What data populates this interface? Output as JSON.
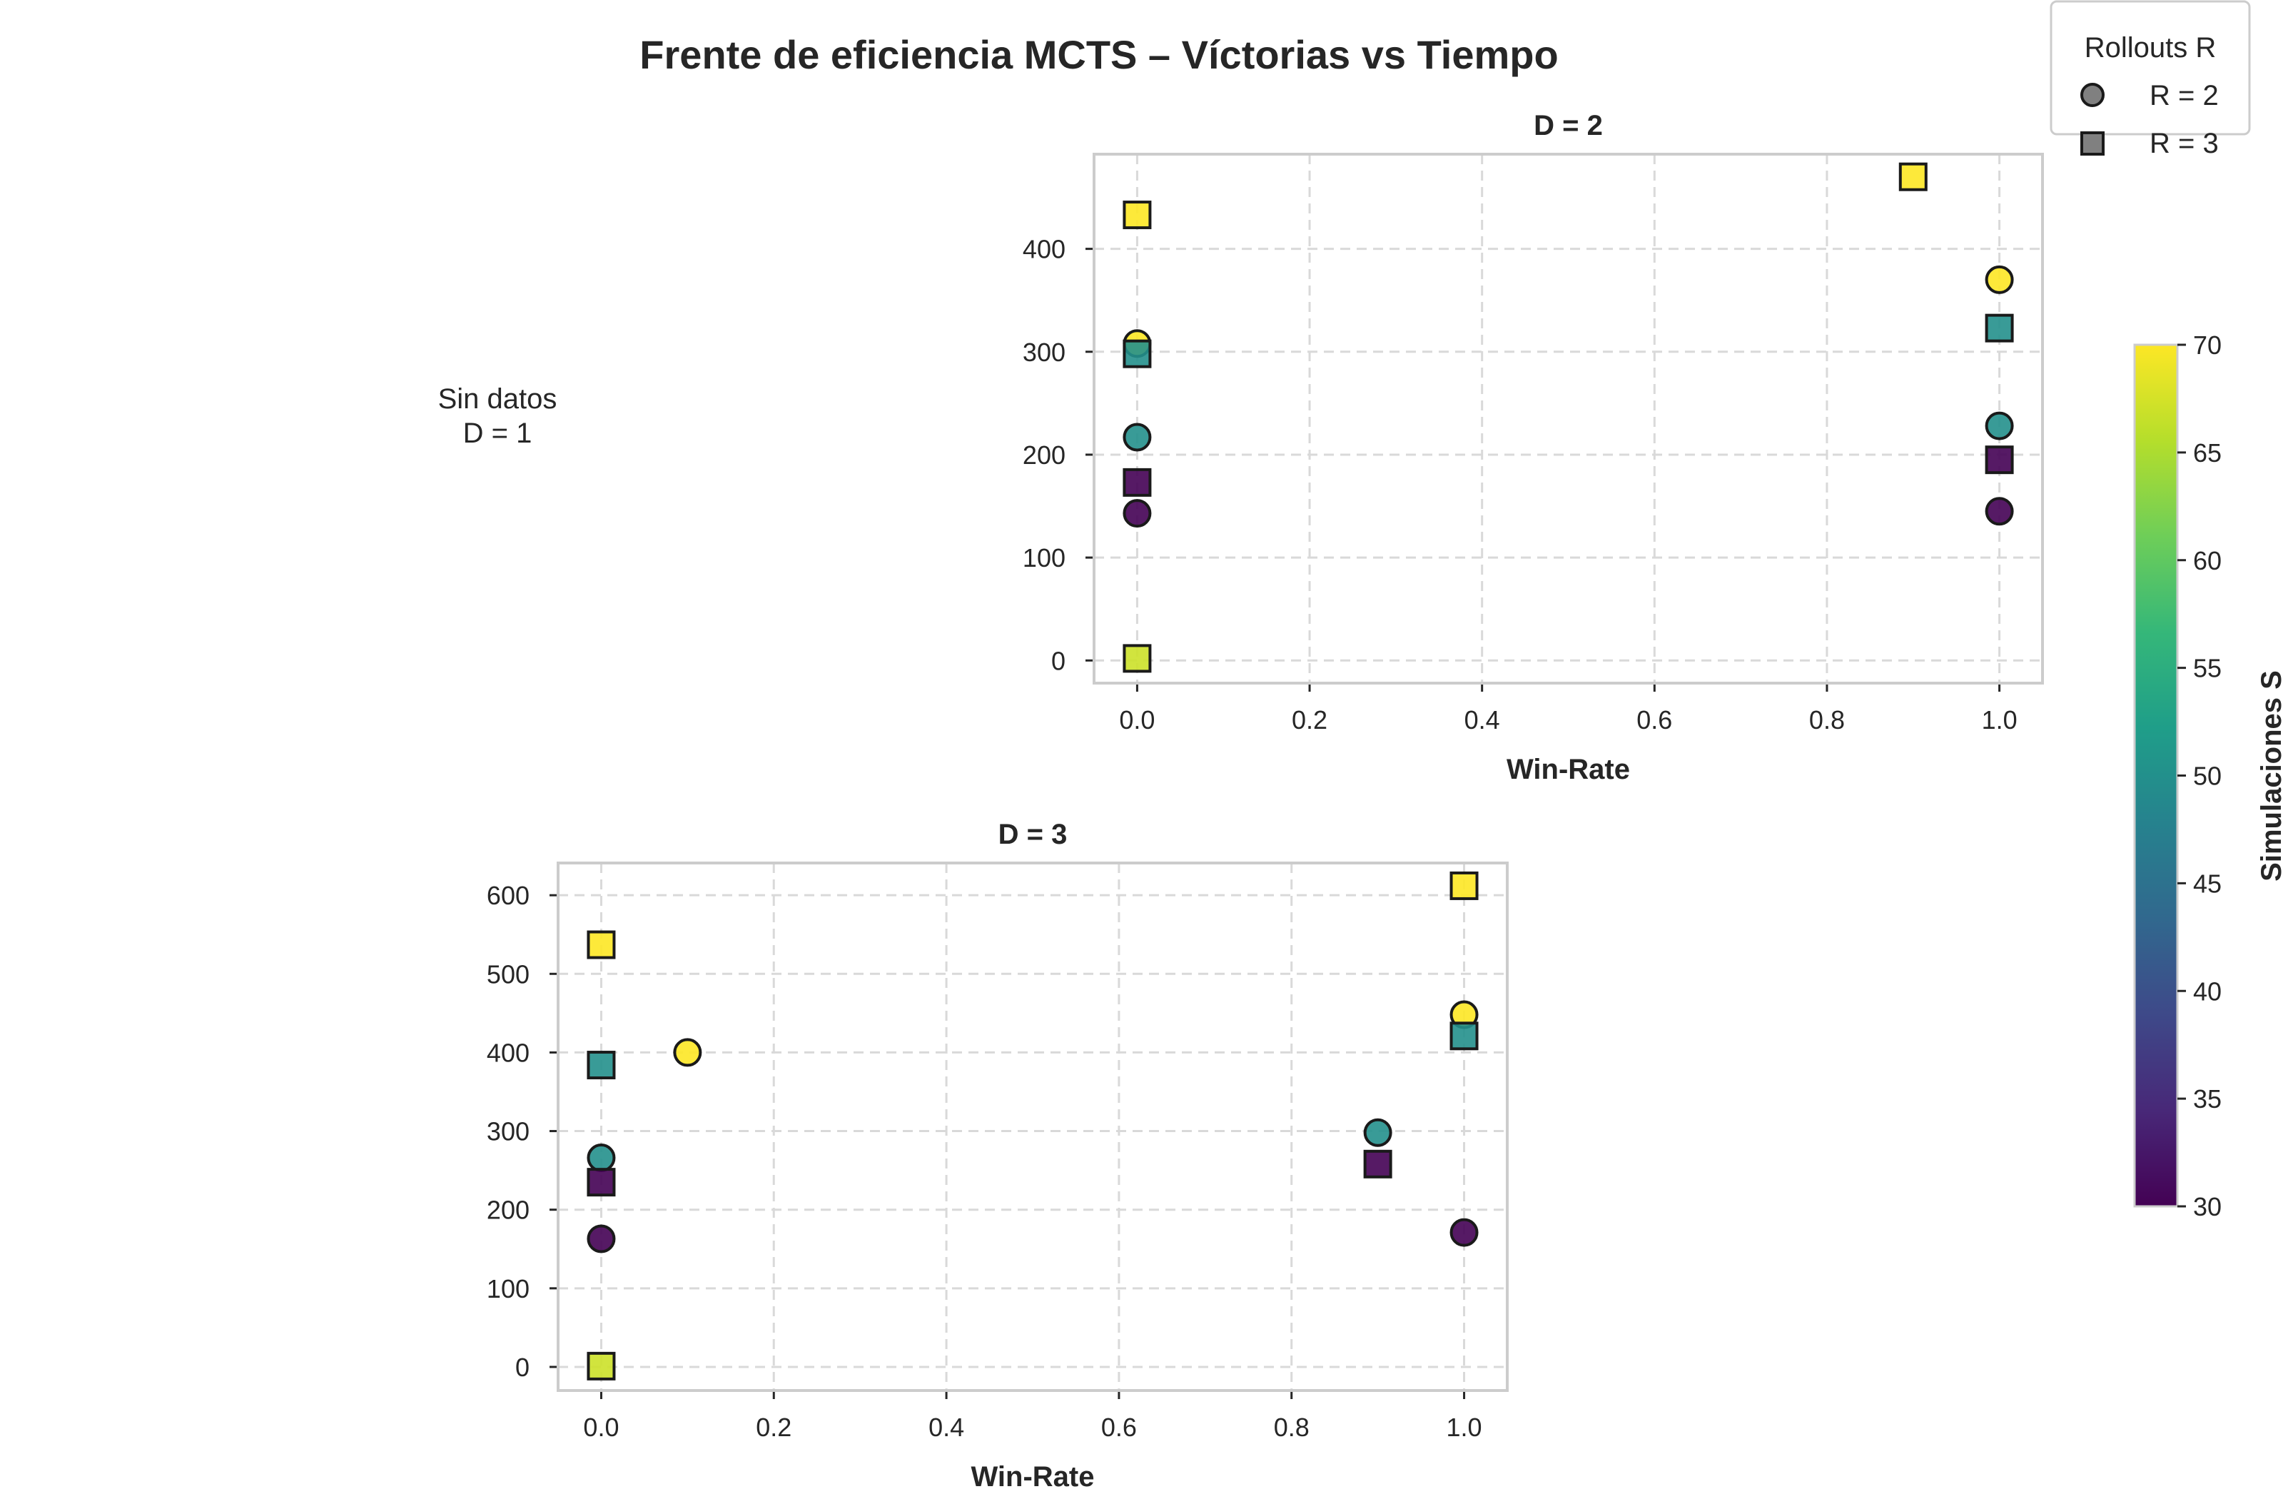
{
  "figure": {
    "title": "Frente de eficiencia MCTS – Víctorias vs Tiempo",
    "empty_panel_text": [
      "Sin datos",
      "D = 1"
    ]
  },
  "legend": {
    "title": "Rollouts R",
    "entries": [
      {
        "label": "R = 2",
        "marker": "circle"
      },
      {
        "label": "R = 3",
        "marker": "square"
      }
    ]
  },
  "colorbar": {
    "label": "Simulaciones S",
    "range": [
      30,
      70
    ],
    "ticks": [
      "30",
      "35",
      "40",
      "45",
      "50",
      "55",
      "60",
      "65",
      "70"
    ],
    "colormap": "viridis",
    "colors": [
      "#440154",
      "#482878",
      "#3e4989",
      "#31688e",
      "#26828e",
      "#1f9e89",
      "#35b779",
      "#6ece58",
      "#b5de2b",
      "#fde725"
    ]
  },
  "chart_data": [
    {
      "type": "scatter",
      "title": "D = 2",
      "xlabel": "Win-Rate",
      "ylabel": "",
      "xlim": [
        -0.05,
        1.05
      ],
      "ylim": [
        -22,
        492
      ],
      "xticks": [
        "0.0",
        "0.2",
        "0.4",
        "0.6",
        "0.8",
        "1.0"
      ],
      "yticks": [
        "0",
        "100",
        "200",
        "300",
        "400"
      ],
      "grid": true,
      "points": [
        {
          "x": 0.0,
          "y": 143,
          "marker": "circle",
          "S": 30
        },
        {
          "x": 0.0,
          "y": 217,
          "marker": "circle",
          "S": 50
        },
        {
          "x": 0.0,
          "y": 308,
          "marker": "circle",
          "S": 70
        },
        {
          "x": 0.0,
          "y": 173,
          "marker": "square",
          "S": 30
        },
        {
          "x": 0.0,
          "y": 298,
          "marker": "square",
          "S": 50
        },
        {
          "x": 0.0,
          "y": 433,
          "marker": "square",
          "S": 70
        },
        {
          "x": 0.0,
          "y": 2,
          "marker": "square",
          "S": 67
        },
        {
          "x": 1.0,
          "y": 145,
          "marker": "circle",
          "S": 30
        },
        {
          "x": 1.0,
          "y": 228,
          "marker": "circle",
          "S": 50
        },
        {
          "x": 1.0,
          "y": 370,
          "marker": "circle",
          "S": 70
        },
        {
          "x": 1.0,
          "y": 195,
          "marker": "square",
          "S": 30
        },
        {
          "x": 1.0,
          "y": 323,
          "marker": "square",
          "S": 50
        },
        {
          "x": 0.9,
          "y": 470,
          "marker": "square",
          "S": 70
        }
      ]
    },
    {
      "type": "scatter",
      "title": "D = 3",
      "xlabel": "Win-Rate",
      "ylabel": "",
      "xlim": [
        -0.05,
        1.05
      ],
      "ylim": [
        -30,
        641
      ],
      "xticks": [
        "0.0",
        "0.2",
        "0.4",
        "0.6",
        "0.8",
        "1.0"
      ],
      "yticks": [
        "0",
        "100",
        "200",
        "300",
        "400",
        "500",
        "600"
      ],
      "grid": true,
      "points": [
        {
          "x": 0.0,
          "y": 163,
          "marker": "circle",
          "S": 30
        },
        {
          "x": 0.0,
          "y": 266,
          "marker": "circle",
          "S": 50
        },
        {
          "x": 0.1,
          "y": 400,
          "marker": "circle",
          "S": 70
        },
        {
          "x": 0.0,
          "y": 235,
          "marker": "square",
          "S": 30
        },
        {
          "x": 0.0,
          "y": 384,
          "marker": "square",
          "S": 50
        },
        {
          "x": 0.0,
          "y": 537,
          "marker": "square",
          "S": 70
        },
        {
          "x": 0.0,
          "y": 1,
          "marker": "square",
          "S": 67
        },
        {
          "x": 1.0,
          "y": 171,
          "marker": "circle",
          "S": 30
        },
        {
          "x": 0.9,
          "y": 298,
          "marker": "circle",
          "S": 50
        },
        {
          "x": 1.0,
          "y": 448,
          "marker": "circle",
          "S": 70
        },
        {
          "x": 0.9,
          "y": 258,
          "marker": "square",
          "S": 30
        },
        {
          "x": 1.0,
          "y": 421,
          "marker": "square",
          "S": 50
        },
        {
          "x": 1.0,
          "y": 612,
          "marker": "square",
          "S": 70
        }
      ]
    }
  ]
}
